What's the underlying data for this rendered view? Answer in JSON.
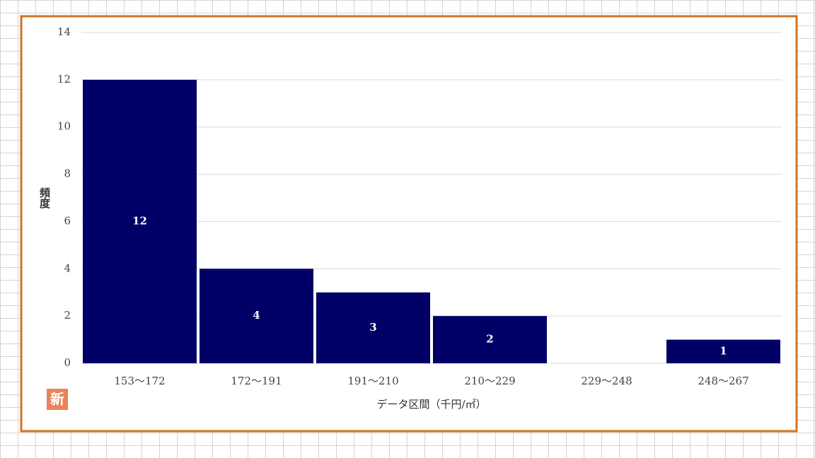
{
  "logo_text": "新",
  "chart_data": {
    "type": "bar",
    "y_axis_label": "頻度",
    "x_axis_label": "データ区間（千円/㎡）",
    "categories": [
      "153～172",
      "172～191",
      "191～210",
      "210～229",
      "229～248",
      "248～267"
    ],
    "values": [
      12,
      4,
      3,
      2,
      0,
      1
    ],
    "color": "#000066",
    "ylim": [
      0,
      14
    ],
    "yticks": [
      0,
      2,
      4,
      6,
      8,
      10,
      12,
      14
    ],
    "grid": true
  }
}
